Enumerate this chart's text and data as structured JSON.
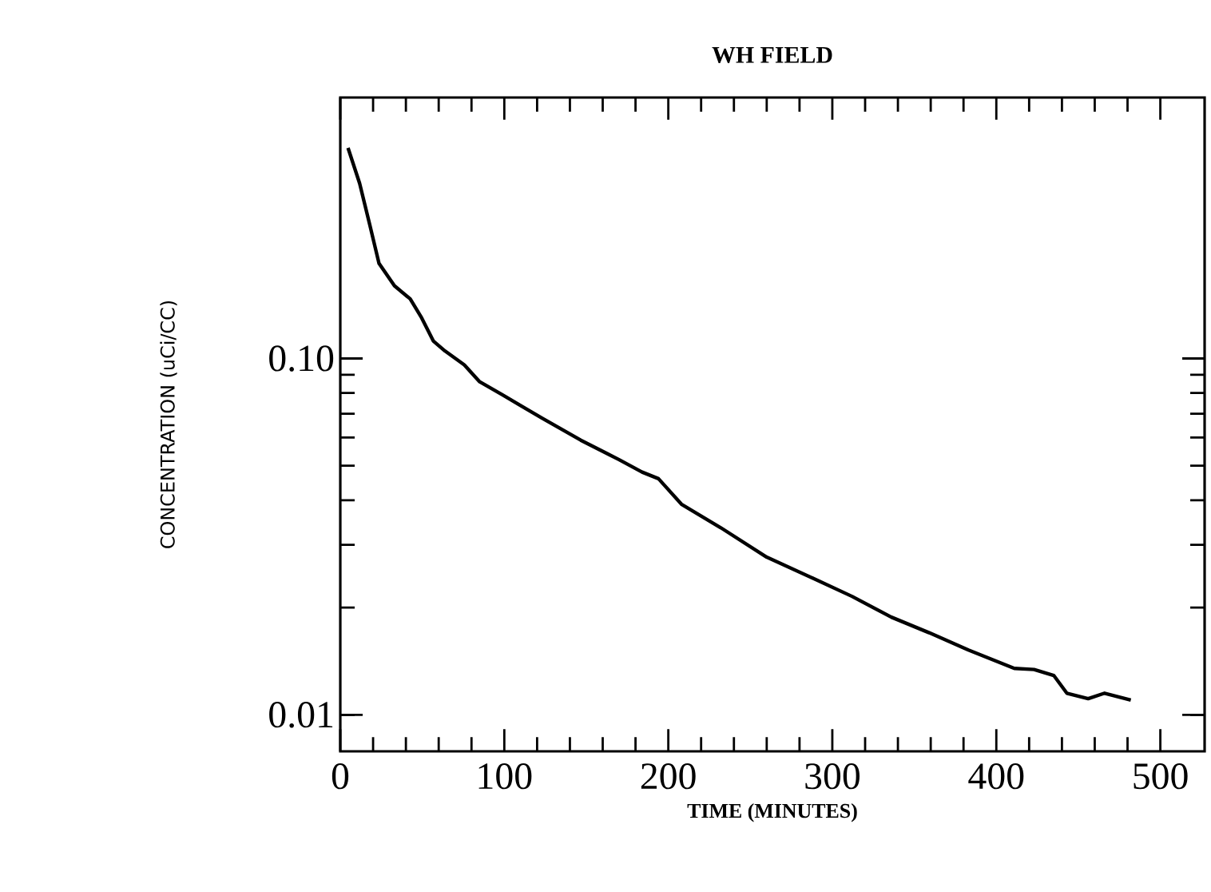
{
  "chart_data": {
    "type": "line",
    "title": "WH FIELD",
    "xlabel": "TIME (MINUTES)",
    "ylabel": "CONCENTRATION (uCi/CC)",
    "x": [
      4.7,
      11.8,
      18,
      23.6,
      33,
      42.6,
      49.6,
      56.7,
      63.8,
      75.6,
      85,
      99,
      123,
      146.6,
      170,
      184,
      194,
      208,
      232,
      260,
      288,
      312,
      336,
      359,
      383,
      411,
      423,
      435,
      443,
      456,
      466,
      482
    ],
    "series": [
      {
        "color": "#000000",
        "values": [
          0.39,
          0.31,
          0.237,
          0.185,
          0.16,
          0.147,
          0.13,
          0.112,
          0.105,
          0.096,
          0.086,
          0.079,
          0.068,
          0.059,
          0.052,
          0.048,
          0.046,
          0.039,
          0.0335,
          0.0277,
          0.0242,
          0.0215,
          0.0188,
          0.017,
          0.0152,
          0.0135,
          0.0134,
          0.0129,
          0.0115,
          0.0111,
          0.0115,
          0.011
        ]
      }
    ],
    "xlim": [
      0,
      527
    ],
    "ylim": [
      0.0079,
      0.54
    ],
    "xticks": [
      0,
      100,
      200,
      300,
      400,
      500
    ],
    "yticks": [
      0.01,
      {
        "value": 0.1,
        "label": "0.10"
      }
    ],
    "log": "y",
    "grid": false,
    "marker": "none",
    "line_style": "solid"
  }
}
